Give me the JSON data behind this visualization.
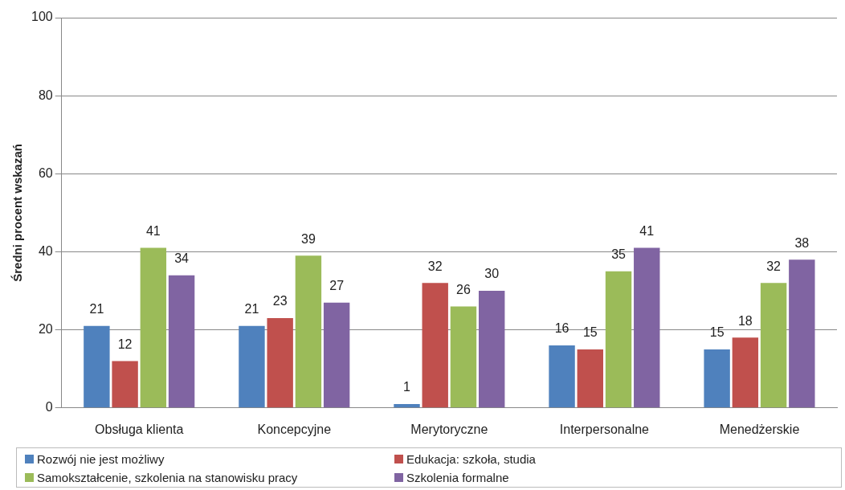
{
  "chart_data": {
    "type": "bar",
    "ylabel": "Średni procent wskazań",
    "categories": [
      "Obsługa klienta",
      "Koncepcyjne",
      "Merytoryczne",
      "Interpersonalne",
      "Menedżerskie"
    ],
    "series": [
      {
        "name": "Rozwój nie jest możliwy",
        "color": "#4f81bd",
        "values": [
          21,
          21,
          1,
          16,
          15
        ]
      },
      {
        "name": "Edukacja: szkoła, studia",
        "color": "#c0504d",
        "values": [
          12,
          23,
          32,
          15,
          18
        ]
      },
      {
        "name": "Samokształcenie, szkolenia na stanowisku pracy",
        "color": "#9bbb59",
        "values": [
          41,
          39,
          26,
          35,
          32
        ]
      },
      {
        "name": "Szkolenia formalne",
        "color": "#8064a2",
        "values": [
          34,
          27,
          30,
          41,
          38
        ]
      }
    ],
    "ylim": [
      0,
      100
    ],
    "yticks": [
      0,
      20,
      40,
      60,
      80,
      100
    ],
    "grid": "y",
    "legend": "bottom",
    "data_labels": true
  }
}
